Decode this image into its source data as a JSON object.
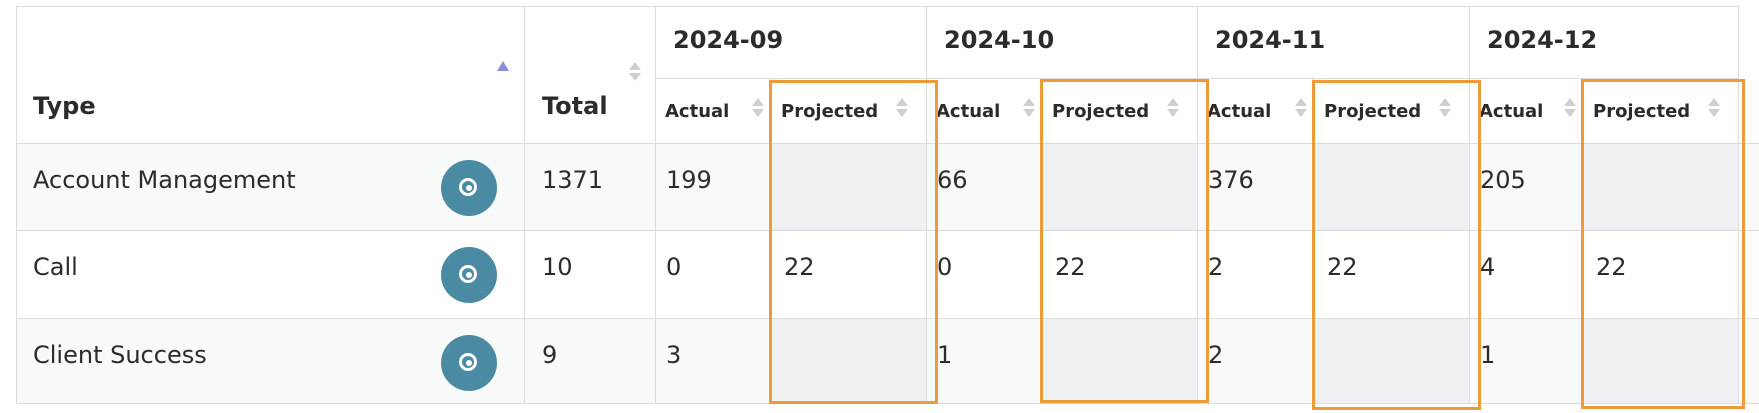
{
  "table": {
    "columns": {
      "type": "Type",
      "total": "Total",
      "months": [
        {
          "label": "2024-09",
          "actual": "Actual",
          "projected": "Projected"
        },
        {
          "label": "2024-10",
          "actual": "Actual",
          "projected": "Projected"
        },
        {
          "label": "2024-11",
          "actual": "Actual",
          "projected": "Projected"
        },
        {
          "label": "2024-12",
          "actual": "Actual",
          "projected": "Projected"
        }
      ]
    },
    "rows": [
      {
        "type": "Account Management",
        "total": 1371,
        "months": [
          {
            "actual": 199,
            "projected": null
          },
          {
            "actual": 66,
            "projected": null
          },
          {
            "actual": 376,
            "projected": null
          },
          {
            "actual": 205,
            "projected": null
          }
        ]
      },
      {
        "type": "Call",
        "total": 10,
        "months": [
          {
            "actual": 0,
            "projected": 22
          },
          {
            "actual": 0,
            "projected": 22
          },
          {
            "actual": 2,
            "projected": 22
          },
          {
            "actual": 4,
            "projected": 22
          }
        ]
      },
      {
        "type": "Client Success",
        "total": 9,
        "months": [
          {
            "actual": 3,
            "projected": null
          },
          {
            "actual": 1,
            "projected": null
          },
          {
            "actual": 2,
            "projected": null
          },
          {
            "actual": 1,
            "projected": null
          }
        ]
      }
    ]
  }
}
